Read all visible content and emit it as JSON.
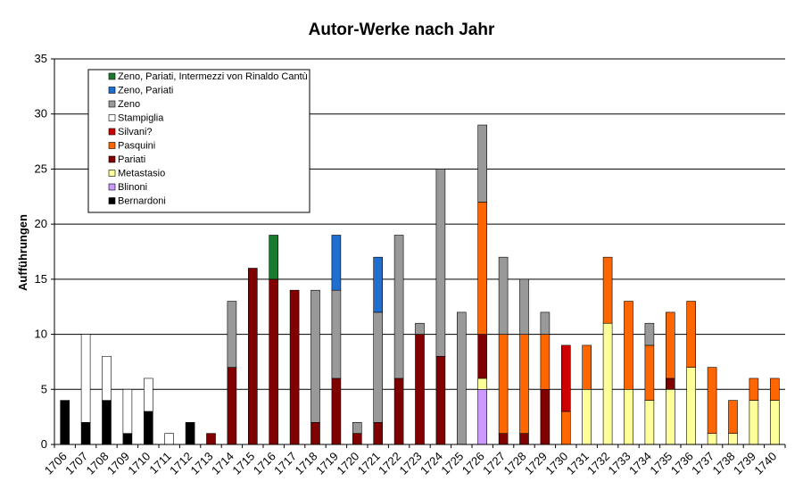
{
  "chart_data": {
    "type": "bar",
    "stacked": true,
    "title": "Autor-Werke nach Jahr",
    "xlabel": "",
    "ylabel": "Aufführungen",
    "ylim": [
      0,
      35
    ],
    "yticks": [
      0,
      5,
      10,
      15,
      20,
      25,
      30,
      35
    ],
    "grid": true,
    "legend_position": "top-left",
    "categories": [
      "1706",
      "1707",
      "1708",
      "1709",
      "1710",
      "1711",
      "1712",
      "1713",
      "1714",
      "1715",
      "1716",
      "1717",
      "1718",
      "1719",
      "1720",
      "1721",
      "1722",
      "1723",
      "1724",
      "1725",
      "1726",
      "1727",
      "1728",
      "1729",
      "1730",
      "1731",
      "1732",
      "1733",
      "1734",
      "1735",
      "1736",
      "1737",
      "1738",
      "1739",
      "1740"
    ],
    "series": [
      {
        "name": "Bernardoni",
        "color": "#000000",
        "values": [
          4,
          2,
          4,
          1,
          3,
          0,
          2,
          0,
          0,
          0,
          0,
          0,
          0,
          0,
          0,
          0,
          0,
          0,
          0,
          0,
          0,
          0,
          0,
          0,
          0,
          0,
          0,
          0,
          0,
          0,
          0,
          0,
          0,
          0,
          0
        ]
      },
      {
        "name": "Blinoni",
        "color": "#cc99ff",
        "values": [
          0,
          0,
          0,
          0,
          0,
          0,
          0,
          0,
          0,
          0,
          0,
          0,
          0,
          0,
          0,
          0,
          0,
          0,
          0,
          0,
          5,
          0,
          0,
          0,
          0,
          0,
          0,
          0,
          0,
          0,
          0,
          0,
          0,
          0,
          0
        ]
      },
      {
        "name": "Metastasio",
        "color": "#ffff99",
        "values": [
          0,
          0,
          0,
          0,
          0,
          0,
          0,
          0,
          0,
          0,
          0,
          0,
          0,
          0,
          0,
          0,
          0,
          0,
          0,
          0,
          1,
          0,
          0,
          0,
          0,
          5,
          11,
          5,
          4,
          5,
          7,
          1,
          1,
          4,
          4
        ]
      },
      {
        "name": "Pariati",
        "color": "#800000",
        "values": [
          0,
          0,
          0,
          0,
          0,
          0,
          0,
          1,
          7,
          16,
          15,
          14,
          2,
          6,
          1,
          2,
          6,
          10,
          8,
          0,
          4,
          1,
          1,
          5,
          0,
          0,
          0,
          0,
          0,
          1,
          0,
          0,
          0,
          0,
          0
        ]
      },
      {
        "name": "Pasquini",
        "color": "#ff6600",
        "values": [
          0,
          0,
          0,
          0,
          0,
          0,
          0,
          0,
          0,
          0,
          0,
          0,
          0,
          0,
          0,
          0,
          0,
          0,
          0,
          0,
          12,
          9,
          9,
          5,
          3,
          4,
          6,
          8,
          5,
          6,
          6,
          6,
          3,
          2,
          2
        ]
      },
      {
        "name": "Silvani?",
        "color": "#cc0000",
        "values": [
          0,
          0,
          0,
          0,
          0,
          0,
          0,
          0,
          0,
          0,
          0,
          0,
          0,
          0,
          0,
          0,
          0,
          0,
          0,
          0,
          0,
          0,
          0,
          0,
          6,
          0,
          0,
          0,
          0,
          0,
          0,
          0,
          0,
          0,
          0
        ]
      },
      {
        "name": "Stampiglia",
        "color": "#ffffff",
        "values": [
          0,
          8,
          4,
          4,
          3,
          1,
          0,
          0,
          0,
          0,
          0,
          0,
          0,
          0,
          0,
          0,
          0,
          0,
          0,
          0,
          0,
          0,
          0,
          0,
          0,
          0,
          0,
          0,
          0,
          0,
          0,
          0,
          0,
          0,
          0
        ]
      },
      {
        "name": "Zeno",
        "color": "#999999",
        "values": [
          0,
          0,
          0,
          0,
          0,
          0,
          0,
          0,
          6,
          0,
          0,
          0,
          12,
          8,
          1,
          10,
          13,
          1,
          17,
          12,
          7,
          7,
          5,
          2,
          0,
          0,
          0,
          0,
          2,
          0,
          0,
          0,
          0,
          0,
          0
        ]
      },
      {
        "name": "Zeno, Pariati",
        "color": "#1f6fd1",
        "values": [
          0,
          0,
          0,
          0,
          0,
          0,
          0,
          0,
          0,
          0,
          0,
          0,
          0,
          5,
          0,
          5,
          0,
          0,
          0,
          0,
          0,
          0,
          0,
          0,
          0,
          0,
          0,
          0,
          0,
          0,
          0,
          0,
          0,
          0,
          0
        ]
      },
      {
        "name": "Zeno, Pariati, Intermezzi von Rinaldo Cantù",
        "color": "#1a7a2e",
        "values": [
          0,
          0,
          0,
          0,
          0,
          0,
          0,
          0,
          0,
          0,
          4,
          0,
          0,
          0,
          0,
          0,
          0,
          0,
          0,
          0,
          0,
          0,
          0,
          0,
          0,
          0,
          0,
          0,
          0,
          0,
          0,
          0,
          0,
          0,
          0
        ]
      }
    ],
    "legend_order": [
      "Zeno, Pariati, Intermezzi von Rinaldo Cantù",
      "Zeno, Pariati",
      "Zeno",
      "Stampiglia",
      "Silvani?",
      "Pasquini",
      "Pariati",
      "Metastasio",
      "Blinoni",
      "Bernardoni"
    ]
  }
}
